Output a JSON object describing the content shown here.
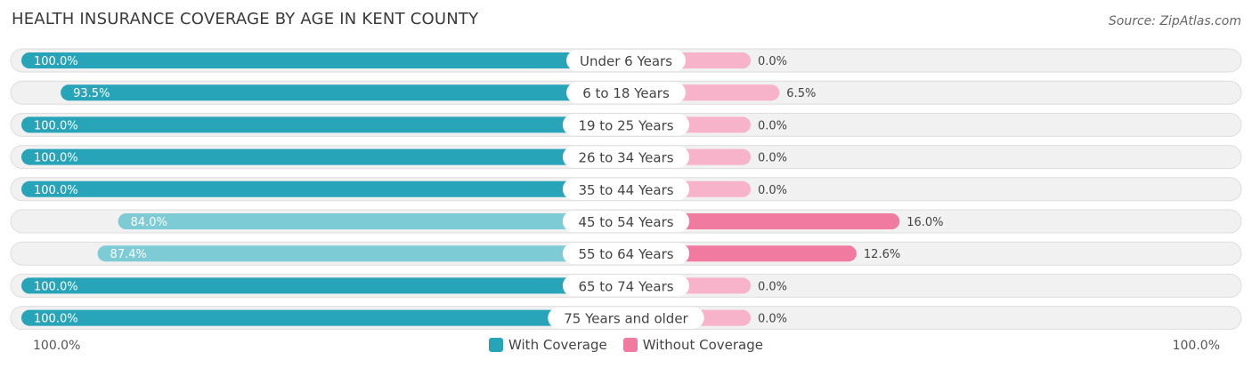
{
  "header": {
    "title": "HEALTH INSURANCE COVERAGE BY AGE IN KENT COUNTY",
    "source": "Source: ZipAtlas.com"
  },
  "axis": {
    "left_label": "100.0%",
    "right_label": "100.0%"
  },
  "legend": {
    "with_label": "With Coverage",
    "without_label": "Without Coverage"
  },
  "colors": {
    "with_strong": "#27a4b8",
    "with_light": "#7dcbd5",
    "without_strong": "#f07aa0",
    "without_light": "#f7b3c9",
    "track": "#f1f1f1"
  },
  "chart_data": {
    "type": "bar",
    "orientation": "horizontal-diverging",
    "title": "HEALTH INSURANCE COVERAGE BY AGE IN KENT COUNTY",
    "categories": [
      "Under 6 Years",
      "6 to 18 Years",
      "19 to 25 Years",
      "26 to 34 Years",
      "35 to 44 Years",
      "45 to 54 Years",
      "55 to 64 Years",
      "65 to 74 Years",
      "75 Years and older"
    ],
    "series": [
      {
        "name": "With Coverage",
        "values": [
          100.0,
          93.5,
          100.0,
          100.0,
          100.0,
          84.0,
          87.4,
          100.0,
          100.0
        ],
        "labels": [
          "100.0%",
          "93.5%",
          "100.0%",
          "100.0%",
          "100.0%",
          "84.0%",
          "87.4%",
          "100.0%",
          "100.0%"
        ]
      },
      {
        "name": "Without Coverage",
        "values": [
          0.0,
          6.5,
          0.0,
          0.0,
          0.0,
          16.0,
          12.6,
          0.0,
          0.0
        ],
        "labels": [
          "0.0%",
          "6.5%",
          "0.0%",
          "0.0%",
          "0.0%",
          "16.0%",
          "12.6%",
          "0.0%",
          "0.0%"
        ]
      }
    ],
    "xlim": [
      0,
      100
    ]
  }
}
